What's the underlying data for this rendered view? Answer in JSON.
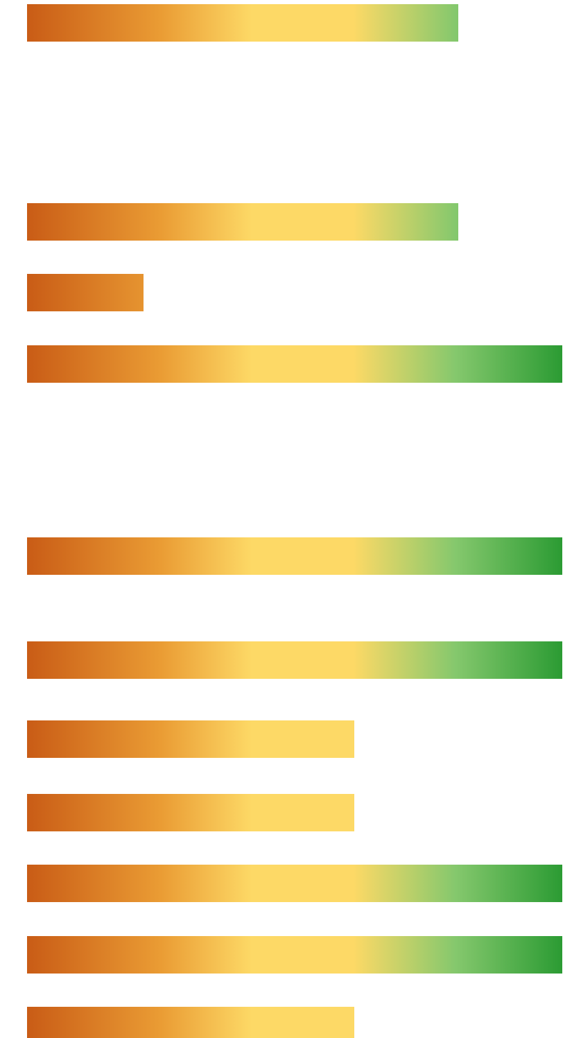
{
  "chart_data": {
    "type": "bar",
    "orientation": "horizontal",
    "title": "",
    "xlabel": "",
    "ylabel": "",
    "xlim": [
      0,
      1
    ],
    "grid": false,
    "legend": "none",
    "gradient_colors": [
      "#c95c16",
      "#ea9c34",
      "#fdd966",
      "#fdd966",
      "#85c86d",
      "#2b9b33"
    ],
    "values": [
      0.806,
      0.806,
      0.218,
      1.0,
      1.0,
      1.0,
      0.611,
      0.611,
      1.0,
      1.0,
      0.611
    ]
  }
}
